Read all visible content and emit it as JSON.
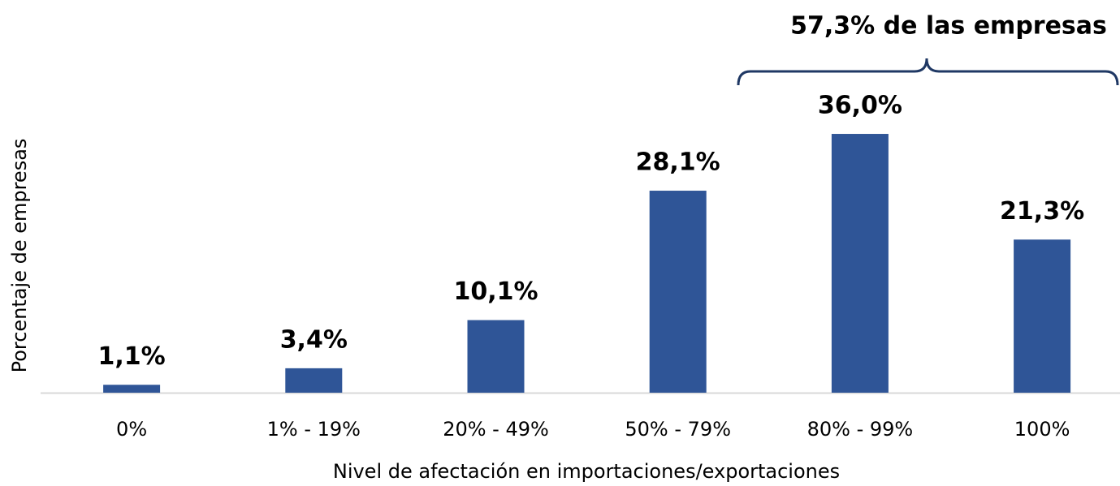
{
  "chart_data": {
    "type": "bar",
    "annotation": "57,3% de las empresas",
    "xlabel": "Nivel de afectación en importaciones/exportaciones",
    "ylabel": "Porcentaje de empresas",
    "categories": [
      "0%",
      "1% - 19%",
      "20% - 49%",
      "50% - 79%",
      "80% - 99%",
      "100%"
    ],
    "values": [
      1.1,
      3.4,
      10.1,
      28.1,
      36.0,
      21.3
    ],
    "value_labels": [
      "1,1%",
      "3,4%",
      "10,1%",
      "28,1%",
      "36,0%",
      "21,3%"
    ],
    "color": "#2f5597"
  }
}
